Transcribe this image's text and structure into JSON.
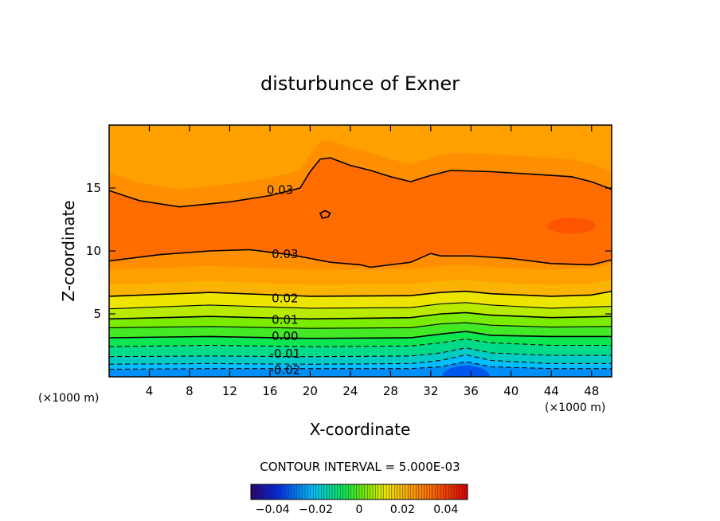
{
  "chart_data": {
    "type": "contour",
    "title": "disturbunce of Exner",
    "xlabel": "X-coordinate",
    "ylabel": "Z-coordinate",
    "x_unit_left": "(×1000 m)",
    "x_unit_right": "(×1000 m)",
    "xlim": [
      0,
      50
    ],
    "ylim": [
      0,
      20
    ],
    "x_ticks": [
      {
        "value": 4,
        "label": "4"
      },
      {
        "value": 8,
        "label": "8"
      },
      {
        "value": 12,
        "label": "12"
      },
      {
        "value": 16,
        "label": "16"
      },
      {
        "value": 20,
        "label": "20"
      },
      {
        "value": 24,
        "label": "24"
      },
      {
        "value": 28,
        "label": "28"
      },
      {
        "value": 32,
        "label": "32"
      },
      {
        "value": 36,
        "label": "36"
      },
      {
        "value": 40,
        "label": "40"
      },
      {
        "value": 44,
        "label": "44"
      },
      {
        "value": 48,
        "label": "48"
      }
    ],
    "y_ticks": [
      {
        "value": 5,
        "label": "5"
      },
      {
        "value": 10,
        "label": "10"
      },
      {
        "value": 15,
        "label": "15"
      }
    ],
    "contour_interval_text": "CONTOUR INTERVAL = 5.000E-03",
    "contour_labels": [
      {
        "text": "0.03",
        "x": 17.0,
        "z": 14.8
      },
      {
        "text": "0.03",
        "x": 17.5,
        "z": 9.7
      },
      {
        "text": "0.02",
        "x": 17.5,
        "z": 6.2
      },
      {
        "text": "0.01",
        "x": 17.5,
        "z": 4.5
      },
      {
        "text": "0.00",
        "x": 17.5,
        "z": 3.2
      },
      {
        "text": "-0.01",
        "x": 17.5,
        "z": 1.8
      },
      {
        "text": "-0.02",
        "x": 17.5,
        "z": 0.5
      }
    ],
    "contours": [
      {
        "level": -0.02,
        "dashed": true,
        "points": [
          [
            0,
            0.6
          ],
          [
            10,
            0.65
          ],
          [
            20,
            0.65
          ],
          [
            30,
            0.65
          ],
          [
            33,
            0.8
          ],
          [
            35.5,
            1.2
          ],
          [
            38,
            0.8
          ],
          [
            44,
            0.65
          ],
          [
            50,
            0.65
          ]
        ]
      },
      {
        "level": -0.015,
        "dashed": true,
        "points": [
          [
            0,
            1.0
          ],
          [
            10,
            1.05
          ],
          [
            20,
            1.0
          ],
          [
            30,
            1.05
          ],
          [
            33,
            1.3
          ],
          [
            35.5,
            1.75
          ],
          [
            38,
            1.3
          ],
          [
            44,
            1.05
          ],
          [
            50,
            1.05
          ]
        ]
      },
      {
        "level": -0.01,
        "dashed": true,
        "points": [
          [
            0,
            1.6
          ],
          [
            10,
            1.65
          ],
          [
            20,
            1.6
          ],
          [
            30,
            1.65
          ],
          [
            33,
            1.9
          ],
          [
            35.5,
            2.3
          ],
          [
            38,
            1.9
          ],
          [
            44,
            1.7
          ],
          [
            50,
            1.7
          ]
        ]
      },
      {
        "level": -0.005,
        "dashed": true,
        "points": [
          [
            0,
            2.4
          ],
          [
            10,
            2.5
          ],
          [
            20,
            2.4
          ],
          [
            30,
            2.45
          ],
          [
            33,
            2.7
          ],
          [
            35.5,
            3.0
          ],
          [
            38,
            2.7
          ],
          [
            44,
            2.5
          ],
          [
            50,
            2.5
          ]
        ]
      },
      {
        "level": 0.0,
        "dashed": false,
        "points": [
          [
            0,
            3.1
          ],
          [
            10,
            3.2
          ],
          [
            20,
            3.05
          ],
          [
            30,
            3.1
          ],
          [
            33,
            3.4
          ],
          [
            35.5,
            3.6
          ],
          [
            38,
            3.3
          ],
          [
            44,
            3.2
          ],
          [
            50,
            3.2
          ]
        ]
      },
      {
        "level": 0.005,
        "dashed": false,
        "points": [
          [
            0,
            3.9
          ],
          [
            10,
            4.0
          ],
          [
            20,
            3.85
          ],
          [
            30,
            3.9
          ],
          [
            33,
            4.2
          ],
          [
            35.5,
            4.3
          ],
          [
            38,
            4.1
          ],
          [
            44,
            3.95
          ],
          [
            50,
            4.0
          ]
        ]
      },
      {
        "level": 0.01,
        "dashed": false,
        "points": [
          [
            0,
            4.6
          ],
          [
            10,
            4.8
          ],
          [
            20,
            4.6
          ],
          [
            30,
            4.7
          ],
          [
            33,
            5.0
          ],
          [
            35.5,
            5.1
          ],
          [
            38,
            4.9
          ],
          [
            44,
            4.7
          ],
          [
            50,
            4.8
          ]
        ]
      },
      {
        "level": 0.015,
        "dashed": false,
        "points": [
          [
            0,
            5.4
          ],
          [
            10,
            5.7
          ],
          [
            20,
            5.45
          ],
          [
            30,
            5.5
          ],
          [
            33,
            5.8
          ],
          [
            35.5,
            5.9
          ],
          [
            38,
            5.7
          ],
          [
            44,
            5.45
          ],
          [
            50,
            5.6
          ]
        ]
      },
      {
        "level": 0.02,
        "dashed": false,
        "points": [
          [
            0,
            6.4
          ],
          [
            10,
            6.7
          ],
          [
            20,
            6.4
          ],
          [
            30,
            6.45
          ],
          [
            33,
            6.7
          ],
          [
            35.5,
            6.8
          ],
          [
            38,
            6.6
          ],
          [
            44,
            6.4
          ],
          [
            48,
            6.5
          ],
          [
            50,
            6.8
          ]
        ]
      },
      {
        "level": 0.03,
        "dashed": false,
        "points": [
          [
            0,
            9.2
          ],
          [
            5,
            9.7
          ],
          [
            10,
            10.0
          ],
          [
            14,
            10.1
          ],
          [
            18,
            9.7
          ],
          [
            22,
            9.1
          ],
          [
            25,
            8.9
          ],
          [
            26,
            8.7
          ],
          [
            30,
            9.1
          ],
          [
            32,
            9.8
          ],
          [
            33,
            9.6
          ],
          [
            36,
            9.6
          ],
          [
            40,
            9.4
          ],
          [
            44,
            9.0
          ],
          [
            48,
            8.9
          ],
          [
            50,
            9.3
          ]
        ]
      },
      {
        "level": 0.03,
        "dashed": false,
        "points": [
          [
            0,
            14.8
          ],
          [
            3,
            14.0
          ],
          [
            7,
            13.5
          ],
          [
            12,
            13.9
          ],
          [
            16,
            14.4
          ],
          [
            19,
            15.0
          ],
          [
            20,
            16.3
          ],
          [
            21,
            17.3
          ],
          [
            22,
            17.4
          ],
          [
            24,
            16.8
          ],
          [
            26,
            16.4
          ],
          [
            28,
            15.9
          ],
          [
            30,
            15.5
          ],
          [
            32,
            16.0
          ],
          [
            34,
            16.4
          ],
          [
            38,
            16.3
          ],
          [
            42,
            16.1
          ],
          [
            46,
            15.9
          ],
          [
            48,
            15.5
          ],
          [
            50,
            14.9
          ]
        ]
      },
      {
        "level": 0.03,
        "dashed": false,
        "closed": true,
        "points": [
          [
            21.2,
            12.6
          ],
          [
            21.8,
            12.7
          ],
          [
            22.0,
            13.0
          ],
          [
            21.5,
            13.2
          ],
          [
            21.0,
            13.0
          ]
        ]
      }
    ],
    "colorbar_ticks": [
      {
        "value": -0.04,
        "label": "−0.04"
      },
      {
        "value": -0.02,
        "label": "−0.02"
      },
      {
        "value": 0,
        "label": "0"
      },
      {
        "value": 0.02,
        "label": "0.02"
      },
      {
        "value": 0.04,
        "label": "0.04"
      }
    ],
    "colorbar_range": [
      -0.05,
      0.05
    ]
  }
}
